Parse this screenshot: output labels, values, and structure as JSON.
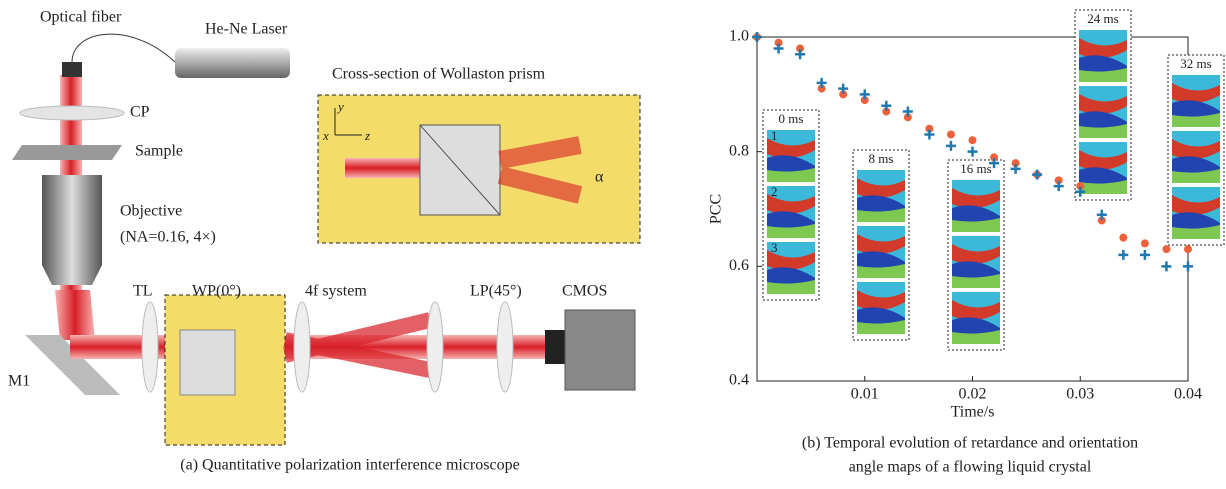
{
  "diagram": {
    "labels": {
      "fiber": "Optical fiber",
      "laser": "He-Ne Laser",
      "cp": "CP",
      "sample": "Sample",
      "objective": "Objective",
      "objective_spec": "(NA=0.16, 4×)",
      "prism_title": "Cross-section of Wollaston prism",
      "axis_y": "y",
      "axis_x": "x",
      "axis_z": "z",
      "alpha": "α",
      "tl": "TL",
      "wp": "WP(0°)",
      "fourf": "4f system",
      "lp": "LP(45°)",
      "cmos": "CMOS",
      "m1": "M1"
    },
    "caption": "(a) Quantitative polarization interference microscope"
  },
  "chart_data": {
    "type": "scatter",
    "x": [
      0,
      0.002,
      0.004,
      0.006,
      0.008,
      0.01,
      0.012,
      0.014,
      0.016,
      0.018,
      0.02,
      0.022,
      0.024,
      0.026,
      0.028,
      0.03,
      0.032,
      0.034,
      0.036,
      0.038,
      0.04
    ],
    "series": [
      {
        "color": "#f0603a",
        "marker": "dot",
        "values": [
          1.0,
          0.99,
          0.98,
          0.91,
          0.9,
          0.89,
          0.87,
          0.86,
          0.84,
          0.83,
          0.82,
          0.79,
          0.78,
          0.76,
          0.75,
          0.74,
          0.68,
          0.65,
          0.64,
          0.63,
          0.63
        ]
      },
      {
        "color": "#1f78b0",
        "marker": "plus",
        "values": [
          1.0,
          0.98,
          0.97,
          0.92,
          0.91,
          0.9,
          0.88,
          0.87,
          0.83,
          0.81,
          0.8,
          0.78,
          0.77,
          0.76,
          0.74,
          0.73,
          0.69,
          0.62,
          0.62,
          0.6,
          0.6
        ]
      }
    ],
    "xlim": [
      0,
      0.04
    ],
    "xticks": [
      0.01,
      0.02,
      0.03,
      0.04
    ],
    "ylim": [
      0.4,
      1.0
    ],
    "yticks": [
      0.4,
      0.6,
      0.8,
      {
        "value": 1.0,
        "label": "1.0"
      }
    ],
    "xlabel": "Time/s",
    "ylabel": "PCC",
    "insets": [
      {
        "label": "0 ms",
        "rows": [
          "1",
          "2",
          "3"
        ]
      },
      {
        "label": "8 ms"
      },
      {
        "label": "16 ms"
      },
      {
        "label": "24 ms"
      },
      {
        "label": "32 ms"
      }
    ],
    "caption": [
      "(b) Temporal evolution of retardance and orientation",
      "angle maps of a flowing liquid crystal"
    ]
  }
}
